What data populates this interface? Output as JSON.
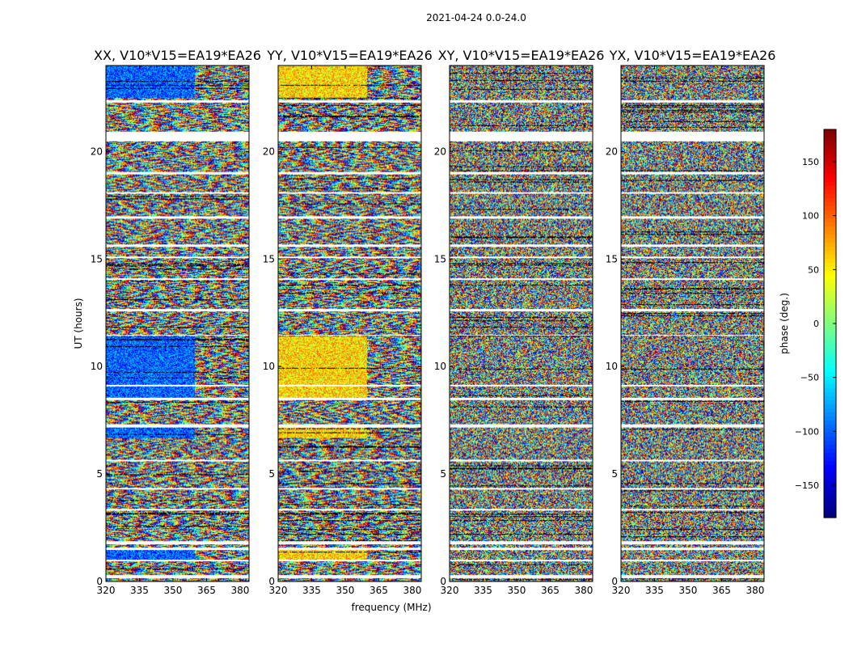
{
  "chart_data": {
    "type": "heatmap",
    "suptitle": "2021-04-24 0.0-24.0",
    "xlabel": "frequency (MHz)",
    "ylabel": "UT (hours)",
    "xlim": [
      320,
      384
    ],
    "ylim": [
      0,
      24
    ],
    "xticks": [
      320,
      335,
      350,
      365,
      380
    ],
    "yticks": [
      0,
      5,
      10,
      15,
      20
    ],
    "panels": [
      {
        "title": "XX, V10*V15=EA19*EA26",
        "character": "blue-dominated low-frequency phase, striped above 363 MHz"
      },
      {
        "title": "YY, V10*V15=EA19*EA26",
        "character": "yellow/orange-dominated low-frequency phase, striped above 363 MHz"
      },
      {
        "title": "XY, V10*V15=EA19*EA26",
        "character": "random phase noise"
      },
      {
        "title": "YX, V10*V15=EA19*EA26",
        "character": "random phase noise"
      }
    ],
    "flagged_gaps_ut": [
      [
        0.18,
        0.32
      ],
      [
        0.95,
        1.02
      ],
      [
        1.5,
        1.58
      ],
      [
        1.75,
        1.9
      ],
      [
        3.3,
        3.38
      ],
      [
        4.3,
        4.38
      ],
      [
        5.6,
        5.7
      ],
      [
        7.2,
        7.32
      ],
      [
        8.45,
        8.55
      ],
      [
        9.1,
        9.18
      ],
      [
        11.45,
        11.5
      ],
      [
        12.6,
        12.68
      ],
      [
        14.05,
        14.12
      ],
      [
        15.05,
        15.12
      ],
      [
        15.6,
        15.68
      ],
      [
        16.9,
        17.0
      ],
      [
        18.05,
        18.12
      ],
      [
        18.95,
        19.05
      ],
      [
        20.5,
        20.95
      ],
      [
        22.3,
        22.4
      ]
    ],
    "colorbar": {
      "label": "phase (deg.)",
      "range": [
        -180,
        180
      ],
      "ticks": [
        -150,
        -100,
        -50,
        0,
        50,
        100,
        150
      ],
      "colormap": "jet",
      "cmap_colors": [
        "#00007f",
        "#0000ff",
        "#007fff",
        "#00ffff",
        "#7fff7f",
        "#ffff00",
        "#ff7f00",
        "#ff0000",
        "#7f0000"
      ]
    }
  }
}
